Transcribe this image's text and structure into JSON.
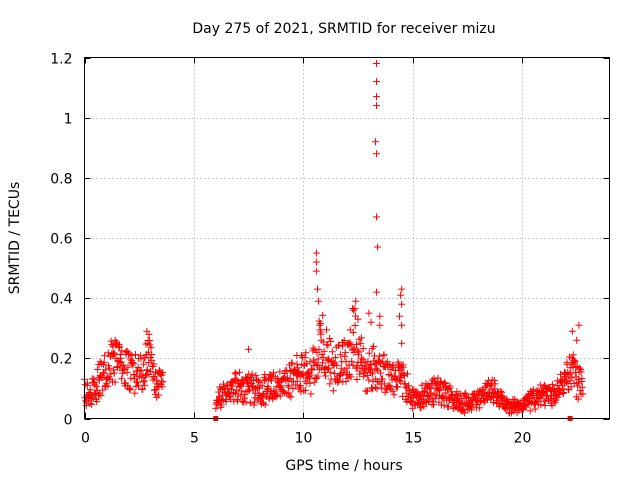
{
  "chart_data": {
    "type": "scatter",
    "title": "Day 275 of 2021, SRMTID for receiver mizu",
    "xlabel": "GPS time / hours",
    "ylabel": "SRMTID / TECUs",
    "xlim": [
      0,
      24
    ],
    "ylim": [
      0,
      1.2
    ],
    "x_ticks": [
      0,
      5,
      10,
      15,
      20
    ],
    "x_tick_labels": [
      "0",
      "5",
      "10",
      "15",
      "20"
    ],
    "y_ticks": [
      0,
      0.2,
      0.4,
      0.6,
      0.8,
      1.0,
      1.2
    ],
    "y_tick_labels": [
      "0",
      "0.2",
      "0.4",
      "0.6",
      "0.8",
      "1",
      "1.2"
    ],
    "grid": true,
    "series": [
      {
        "name": "SRMTID",
        "color": "#ff0000",
        "marker": "plus",
        "envelope": [
          {
            "x": 0.0,
            "y": 0.09
          },
          {
            "x": 0.3,
            "y": 0.08
          },
          {
            "x": 0.6,
            "y": 0.11
          },
          {
            "x": 0.9,
            "y": 0.15
          },
          {
            "x": 1.2,
            "y": 0.18
          },
          {
            "x": 1.5,
            "y": 0.19
          },
          {
            "x": 1.8,
            "y": 0.16
          },
          {
            "x": 2.1,
            "y": 0.15
          },
          {
            "x": 2.4,
            "y": 0.14
          },
          {
            "x": 2.7,
            "y": 0.15
          },
          {
            "x": 2.9,
            "y": 0.2
          },
          {
            "x": 3.1,
            "y": 0.15
          },
          {
            "x": 3.3,
            "y": 0.1
          },
          {
            "x": 3.6,
            "y": 0.11
          },
          {
            "x": 6.0,
            "y": 0.06
          },
          {
            "x": 6.5,
            "y": 0.08
          },
          {
            "x": 7.0,
            "y": 0.1
          },
          {
            "x": 7.5,
            "y": 0.1
          },
          {
            "x": 8.0,
            "y": 0.09
          },
          {
            "x": 8.5,
            "y": 0.1
          },
          {
            "x": 9.0,
            "y": 0.1
          },
          {
            "x": 9.5,
            "y": 0.13
          },
          {
            "x": 10.0,
            "y": 0.15
          },
          {
            "x": 10.3,
            "y": 0.12
          },
          {
            "x": 10.6,
            "y": 0.18
          },
          {
            "x": 10.8,
            "y": 0.24
          },
          {
            "x": 11.2,
            "y": 0.18
          },
          {
            "x": 11.6,
            "y": 0.17
          },
          {
            "x": 12.0,
            "y": 0.18
          },
          {
            "x": 12.3,
            "y": 0.27
          },
          {
            "x": 12.6,
            "y": 0.18
          },
          {
            "x": 13.0,
            "y": 0.14
          },
          {
            "x": 13.3,
            "y": 0.17
          },
          {
            "x": 13.6,
            "y": 0.16
          },
          {
            "x": 14.0,
            "y": 0.12
          },
          {
            "x": 14.5,
            "y": 0.13
          },
          {
            "x": 15.0,
            "y": 0.06
          },
          {
            "x": 15.5,
            "y": 0.07
          },
          {
            "x": 16.0,
            "y": 0.09
          },
          {
            "x": 16.5,
            "y": 0.08
          },
          {
            "x": 17.0,
            "y": 0.06
          },
          {
            "x": 17.5,
            "y": 0.05
          },
          {
            "x": 18.0,
            "y": 0.07
          },
          {
            "x": 18.5,
            "y": 0.09
          },
          {
            "x": 19.0,
            "y": 0.06
          },
          {
            "x": 19.5,
            "y": 0.04
          },
          {
            "x": 20.0,
            "y": 0.04
          },
          {
            "x": 20.5,
            "y": 0.06
          },
          {
            "x": 21.0,
            "y": 0.07
          },
          {
            "x": 21.5,
            "y": 0.08
          },
          {
            "x": 22.0,
            "y": 0.12
          },
          {
            "x": 22.3,
            "y": 0.16
          },
          {
            "x": 22.6,
            "y": 0.12
          },
          {
            "x": 22.8,
            "y": 0.09
          }
        ],
        "peaks": [
          {
            "x": 13.35,
            "y": 1.18
          },
          {
            "x": 13.35,
            "y": 1.12
          },
          {
            "x": 13.35,
            "y": 1.07
          },
          {
            "x": 13.35,
            "y": 1.04
          },
          {
            "x": 13.3,
            "y": 0.92
          },
          {
            "x": 13.35,
            "y": 0.88
          },
          {
            "x": 13.35,
            "y": 0.67
          },
          {
            "x": 13.4,
            "y": 0.57
          },
          {
            "x": 13.35,
            "y": 0.42
          },
          {
            "x": 13.5,
            "y": 0.34
          },
          {
            "x": 13.5,
            "y": 0.31
          },
          {
            "x": 10.6,
            "y": 0.55
          },
          {
            "x": 10.6,
            "y": 0.52
          },
          {
            "x": 10.6,
            "y": 0.49
          },
          {
            "x": 10.65,
            "y": 0.43
          },
          {
            "x": 10.7,
            "y": 0.39
          },
          {
            "x": 10.75,
            "y": 0.31
          },
          {
            "x": 10.8,
            "y": 0.28
          },
          {
            "x": 12.4,
            "y": 0.39
          },
          {
            "x": 12.3,
            "y": 0.36
          },
          {
            "x": 12.5,
            "y": 0.33
          },
          {
            "x": 13.0,
            "y": 0.35
          },
          {
            "x": 13.1,
            "y": 0.32
          },
          {
            "x": 14.5,
            "y": 0.43
          },
          {
            "x": 14.45,
            "y": 0.41
          },
          {
            "x": 14.5,
            "y": 0.38
          },
          {
            "x": 14.4,
            "y": 0.34
          },
          {
            "x": 14.5,
            "y": 0.31
          },
          {
            "x": 14.5,
            "y": 0.25
          },
          {
            "x": 22.6,
            "y": 0.31
          },
          {
            "x": 22.3,
            "y": 0.29
          },
          {
            "x": 22.5,
            "y": 0.26
          },
          {
            "x": 2.85,
            "y": 0.29
          },
          {
            "x": 2.95,
            "y": 0.28
          },
          {
            "x": 2.9,
            "y": 0.25
          },
          {
            "x": 1.3,
            "y": 0.24
          },
          {
            "x": 1.6,
            "y": 0.24
          },
          {
            "x": 7.5,
            "y": 0.23
          }
        ],
        "zero_markers": [
          6.0,
          22.2
        ]
      }
    ]
  }
}
